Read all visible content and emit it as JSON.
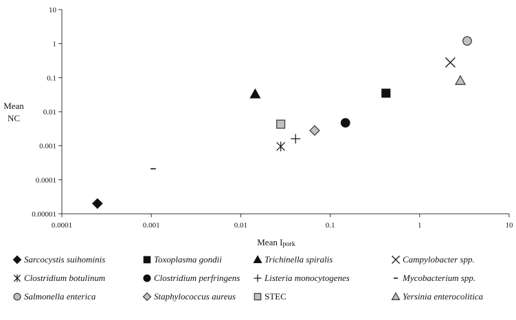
{
  "chart_data": {
    "type": "scatter",
    "title": "",
    "xlabel": "Mean I",
    "xlabel_sub": "pork",
    "ylabel_lines": [
      "Mean",
      "NC"
    ],
    "x_scale": "log",
    "y_scale": "log",
    "xlim": [
      0.0001,
      10
    ],
    "ylim": [
      1e-05,
      10
    ],
    "x_ticks": [
      0.0001,
      0.001,
      0.01,
      0.1,
      1,
      10
    ],
    "x_tick_labels": [
      "0.0001",
      "0.001",
      "0.01",
      "0.1",
      "1",
      "10"
    ],
    "y_ticks": [
      1e-05,
      0.0001,
      0.001,
      0.01,
      0.1,
      1,
      10
    ],
    "y_tick_labels": [
      "0.00001",
      "0.0001",
      "0.001",
      "0.01",
      "0.1",
      "1",
      "10"
    ],
    "grid": false,
    "legend_position": "bottom",
    "series": [
      {
        "name": "Sarcocystis suihominis",
        "marker": "diamond",
        "fill": "#111111",
        "stroke": "#111111",
        "italic": true,
        "x": 0.00025,
        "y": 2e-05
      },
      {
        "name": "Toxoplasma gondii",
        "marker": "square",
        "fill": "#111111",
        "stroke": "#111111",
        "italic": true,
        "x": 0.42,
        "y": 0.035
      },
      {
        "name": "Trichinella spiralis",
        "marker": "triangle",
        "fill": "#111111",
        "stroke": "#111111",
        "italic": true,
        "x": 0.0145,
        "y": 0.033
      },
      {
        "name": "Campylobacter spp.",
        "marker": "x",
        "fill": "none",
        "stroke": "#111111",
        "italic": true,
        "x": 2.2,
        "y": 0.28
      },
      {
        "name": "Clostridium botulinum",
        "marker": "asterisk",
        "fill": "none",
        "stroke": "#111111",
        "italic": true,
        "x": 0.028,
        "y": 0.00095
      },
      {
        "name": "Clostridium perfringens",
        "marker": "circle",
        "fill": "#111111",
        "stroke": "#111111",
        "italic": true,
        "x": 0.148,
        "y": 0.0047
      },
      {
        "name": "Listeria monocytogenes",
        "marker": "plus",
        "fill": "none",
        "stroke": "#111111",
        "italic": true,
        "x": 0.041,
        "y": 0.0016
      },
      {
        "name": "Mycobacterium spp.",
        "marker": "dash",
        "fill": "none",
        "stroke": "#111111",
        "italic": true,
        "x": 0.00105,
        "y": 0.00021
      },
      {
        "name": "Salmonella enterica",
        "marker": "circle",
        "fill": "#c0c0c0",
        "stroke": "#333333",
        "italic": true,
        "x": 3.4,
        "y": 1.2
      },
      {
        "name": "Staphylococcus aureus",
        "marker": "diamond",
        "fill": "#c0c0c0",
        "stroke": "#333333",
        "italic": true,
        "x": 0.067,
        "y": 0.0028
      },
      {
        "name": "STEC",
        "marker": "square",
        "fill": "#c0c0c0",
        "stroke": "#333333",
        "italic": false,
        "x": 0.028,
        "y": 0.0043
      },
      {
        "name": "Yersinia enterocolitica",
        "marker": "triangle",
        "fill": "#c0c0c0",
        "stroke": "#333333",
        "italic": true,
        "x": 2.85,
        "y": 0.082
      }
    ]
  }
}
